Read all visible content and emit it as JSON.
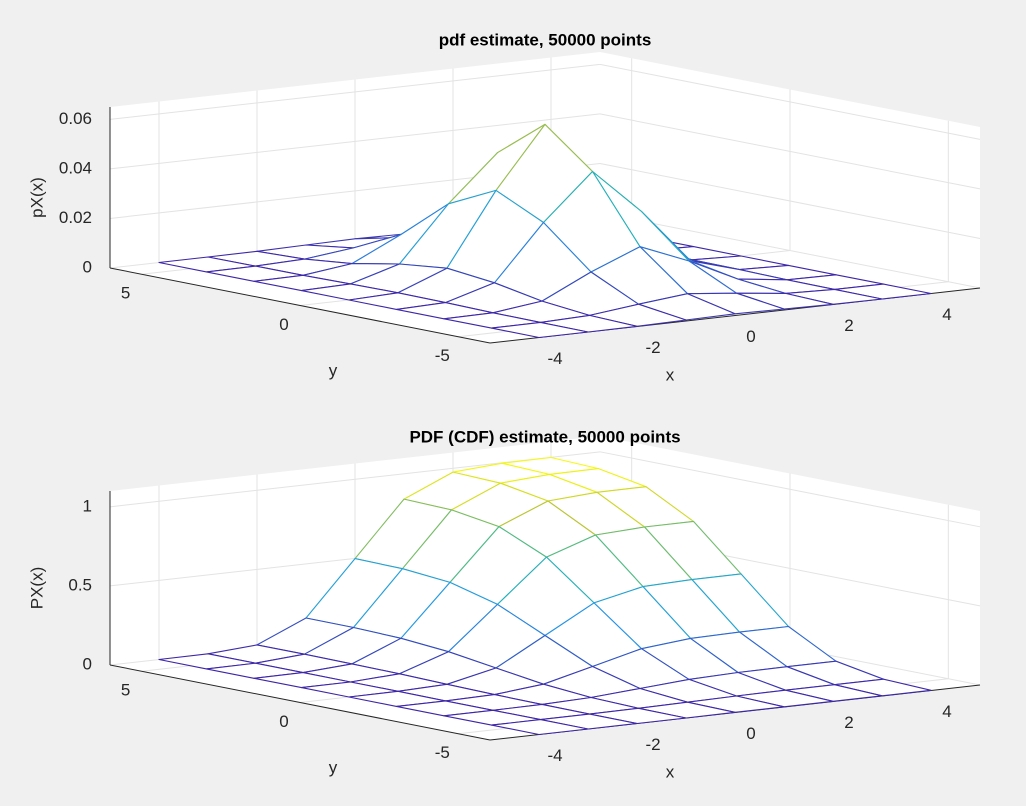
{
  "chart_data": [
    {
      "type": "mesh",
      "title": "pdf estimate, 50000 points",
      "xlabel": "x",
      "ylabel": "y",
      "zlabel": "pX(x)",
      "colormap": "parula",
      "grid": true,
      "x": [
        -4,
        -3,
        -2,
        -1,
        0,
        1,
        2,
        3,
        4
      ],
      "y": [
        -6,
        -4.5,
        -3,
        -1.5,
        0,
        1.5,
        3,
        4.5,
        6
      ],
      "z": [
        [
          0,
          0,
          0.0001,
          0.0004,
          0.0007,
          0.0004,
          0.0001,
          0,
          0
        ],
        [
          0,
          0.0001,
          0.0007,
          0.003,
          0.005,
          0.003,
          0.0007,
          0.0001,
          0
        ],
        [
          0,
          0.0002,
          0.0027,
          0.0122,
          0.0202,
          0.0122,
          0.0027,
          0.0002,
          0
        ],
        [
          0,
          0.0005,
          0.0063,
          0.0284,
          0.0468,
          0.0284,
          0.0063,
          0.0005,
          0
        ],
        [
          0,
          0.0007,
          0.0084,
          0.0376,
          0.062,
          0.0376,
          0.0084,
          0.0007,
          0
        ],
        [
          0,
          0.0005,
          0.0063,
          0.0284,
          0.0468,
          0.0284,
          0.0063,
          0.0005,
          0
        ],
        [
          0,
          0.0002,
          0.0027,
          0.0122,
          0.0202,
          0.0122,
          0.0027,
          0.0002,
          0
        ],
        [
          0,
          0.0001,
          0.0007,
          0.003,
          0.005,
          0.003,
          0.0007,
          0.0001,
          0
        ],
        [
          0,
          0,
          0.0001,
          0.0004,
          0.0007,
          0.0004,
          0.0001,
          0,
          0
        ]
      ],
      "xlim": [
        -5,
        5
      ],
      "ylim": [
        -6,
        6
      ],
      "zlim": [
        0,
        0.065
      ],
      "xticks": [
        -4,
        -2,
        0,
        2,
        4
      ],
      "yticks": [
        -5,
        0,
        5
      ],
      "zticks": [
        0,
        0.02,
        0.04,
        0.06
      ]
    },
    {
      "type": "mesh",
      "title": "PDF (CDF) estimate, 50000 points",
      "xlabel": "x",
      "ylabel": "y",
      "zlabel": "PX(x)",
      "colormap": "parula",
      "grid": true,
      "x": [
        -4,
        -3,
        -2,
        -1,
        0,
        1,
        2,
        3,
        4
      ],
      "y": [
        -6,
        -4.5,
        -3,
        -1.5,
        0,
        1.5,
        3,
        4.5,
        6
      ],
      "z": [
        [
          0,
          0,
          0,
          0,
          0.001,
          0.001,
          0.001,
          0.001,
          0.001
        ],
        [
          0,
          0,
          0,
          0.002,
          0.006,
          0.01,
          0.012,
          0.012,
          0.012
        ],
        [
          0,
          0,
          0.002,
          0.011,
          0.033,
          0.056,
          0.065,
          0.067,
          0.067
        ],
        [
          0,
          0,
          0.005,
          0.036,
          0.113,
          0.191,
          0.221,
          0.226,
          0.227
        ],
        [
          0,
          0.001,
          0.011,
          0.079,
          0.25,
          0.421,
          0.489,
          0.499,
          0.5
        ],
        [
          0,
          0.001,
          0.018,
          0.123,
          0.387,
          0.651,
          0.756,
          0.772,
          0.773
        ],
        [
          0,
          0.001,
          0.021,
          0.148,
          0.467,
          0.785,
          0.912,
          0.932,
          0.933
        ],
        [
          0,
          0.001,
          0.023,
          0.157,
          0.494,
          0.831,
          0.965,
          0.986,
          0.988
        ],
        [
          0,
          0.001,
          0.023,
          0.158,
          0.499,
          0.84,
          0.976,
          0.997,
          0.999
        ]
      ],
      "xlim": [
        -5,
        5
      ],
      "ylim": [
        -6,
        6
      ],
      "zlim": [
        0,
        1.1
      ],
      "xticks": [
        -4,
        -2,
        0,
        2,
        4
      ],
      "yticks": [
        -5,
        0,
        5
      ],
      "zticks": [
        0,
        0.5,
        1
      ]
    }
  ]
}
